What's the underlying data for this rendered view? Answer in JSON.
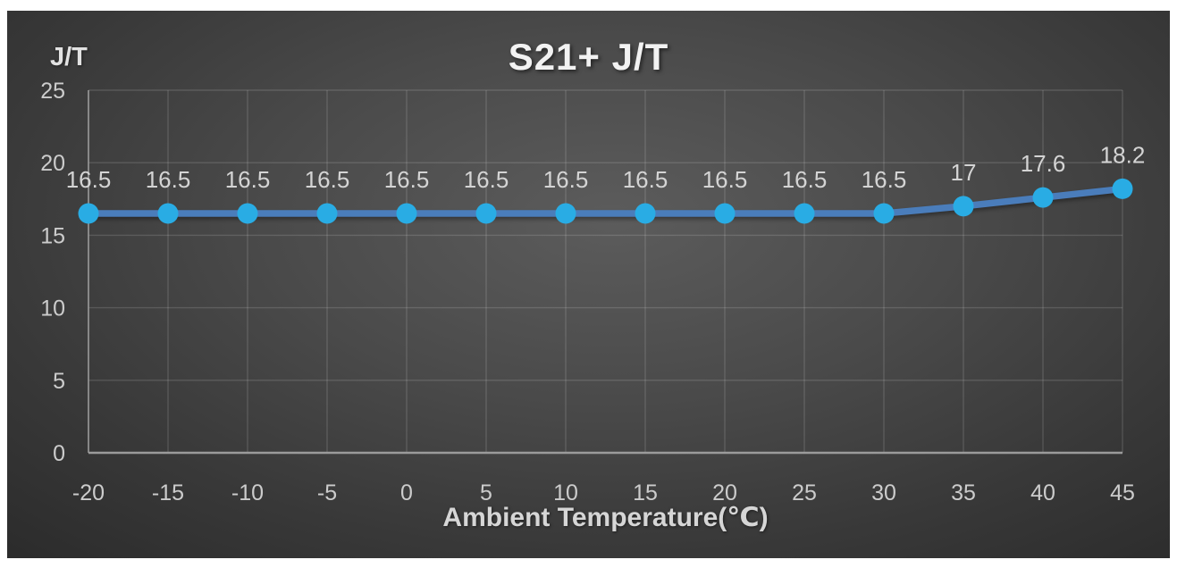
{
  "chart_data": {
    "type": "line",
    "title": "S21+ J/T",
    "xlabel": "Ambient Temperature(℃)",
    "ylabel": "J/T",
    "categories": [
      -20,
      -15,
      -10,
      -5,
      0,
      5,
      10,
      15,
      20,
      25,
      30,
      35,
      40,
      45
    ],
    "series": [
      {
        "name": "J/T",
        "values": [
          16.5,
          16.5,
          16.5,
          16.5,
          16.5,
          16.5,
          16.5,
          16.5,
          16.5,
          16.5,
          16.5,
          17,
          17.6,
          18.2
        ],
        "data_labels": [
          "16.5",
          "16.5",
          "16.5",
          "16.5",
          "16.5",
          "16.5",
          "16.5",
          "16.5",
          "16.5",
          "16.5",
          "16.5",
          "17",
          "17.6",
          "18.2"
        ]
      }
    ],
    "yticks": [
      0,
      5,
      10,
      15,
      20,
      25
    ],
    "ylim": [
      0,
      25
    ],
    "grid": true,
    "legend": "none",
    "colors": {
      "line": "#4a7dbb",
      "marker": "#29ace4",
      "gridline": "rgba(255,255,255,0.14)",
      "axis_line": "#9b9b9b",
      "tick_text": "#cccccc",
      "data_label_text": "#d4d4d4",
      "title_text": "#f2f2f2",
      "background_center": "#5c5c5c",
      "background_edge": "#262626",
      "page_border": "#ffffff"
    }
  }
}
